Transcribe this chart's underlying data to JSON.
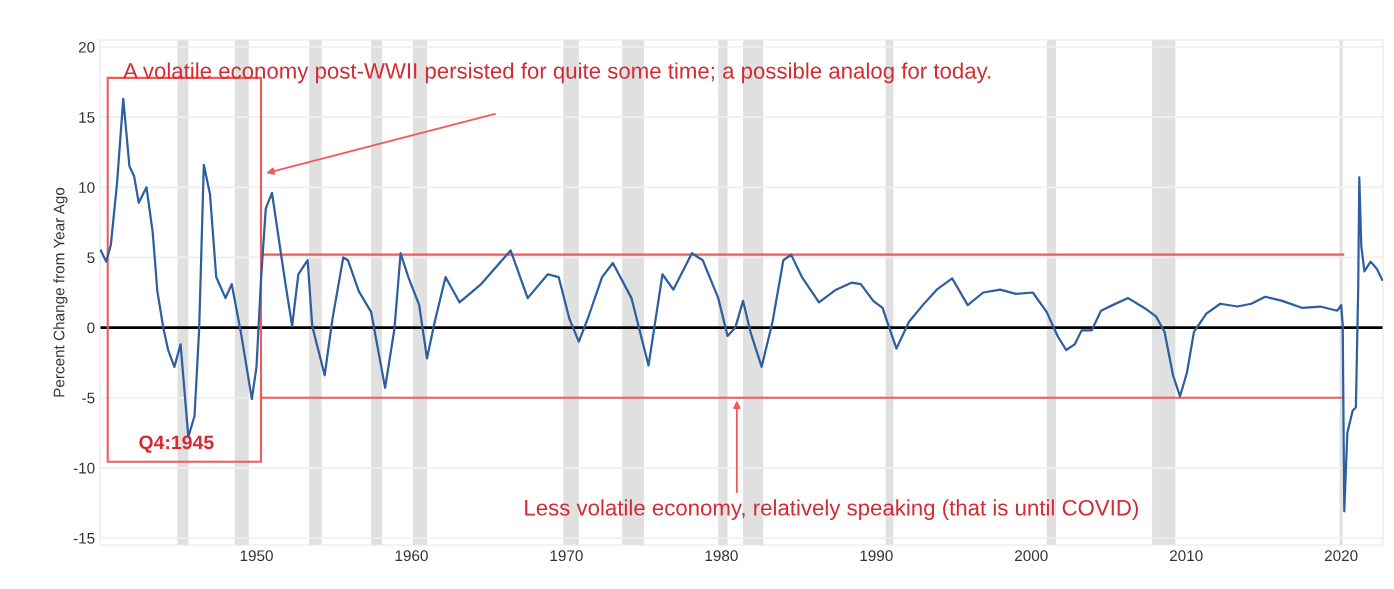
{
  "chart_data": {
    "type": "line",
    "ylabel": "Percent Change from Year Ago",
    "xlim": [
      1939.9,
      2022.7
    ],
    "ylim": [
      -15.5,
      20.5
    ],
    "xticks": [
      1950,
      1960,
      1970,
      1980,
      1990,
      2000,
      2010,
      2020
    ],
    "yticks": [
      -15,
      -10,
      -5,
      0,
      5,
      10,
      15,
      20
    ],
    "grid": "y",
    "series": [
      {
        "color": "#2e5e9e",
        "x": [
          1939.95,
          1940.3,
          1940.6,
          1941.0,
          1941.4,
          1941.8,
          1942.1,
          1942.4,
          1942.9,
          1943.3,
          1943.6,
          1944.0,
          1944.3,
          1944.7,
          1945.1,
          1945.6,
          1946.0,
          1946.3,
          1946.6,
          1947.0,
          1947.4,
          1948.0,
          1948.4,
          1949.0,
          1949.7,
          1950.0,
          1950.3,
          1950.6,
          1951.0,
          1951.6,
          1951.9,
          1952.3,
          1952.7,
          1953.3,
          1953.6,
          1954.4,
          1954.9,
          1955.6,
          1955.9,
          1956.6,
          1957.4,
          1958.3,
          1958.9,
          1959.3,
          1959.8,
          1960.5,
          1961.0,
          1961.5,
          1962.2,
          1963.1,
          1964.5,
          1966.4,
          1967.5,
          1968.8,
          1969.5,
          1970.2,
          1970.8,
          1971.4,
          1972.3,
          1973.0,
          1974.2,
          1975.3,
          1976.2,
          1976.9,
          1978.1,
          1978.8,
          1979.8,
          1980.4,
          1980.9,
          1981.4,
          1981.9,
          1982.6,
          1983.3,
          1984.0,
          1984.5,
          1985.2,
          1986.3,
          1987.4,
          1988.4,
          1989.0,
          1989.8,
          1990.4,
          1991.3,
          1992.1,
          1993.0,
          1993.9,
          1994.9,
          1995.9,
          1996.9,
          1998.0,
          1999.0,
          2000.1,
          2001.0,
          2001.7,
          2002.25,
          2002.8,
          2003.25,
          2003.9,
          2004.5,
          2005.25,
          2006.25,
          2007.3,
          2008.05,
          2008.6,
          2009.15,
          2009.6,
          2010.05,
          2010.5,
          2011.3,
          2012.2,
          2013.3,
          2014.2,
          2015.1,
          2016.2,
          2017.5,
          2018.65,
          2019.75,
          2020.0,
          2020.1,
          2020.2,
          2020.4,
          2020.75,
          2020.95,
          2021.1,
          2021.17,
          2021.3,
          2021.5,
          2021.9,
          2022.3,
          2022.65
        ],
        "values": [
          5.5,
          4.7,
          5.9,
          10.3,
          16.3,
          11.5,
          10.8,
          8.9,
          10.0,
          6.8,
          2.6,
          -0.1,
          -1.6,
          -2.8,
          -1.2,
          -7.8,
          -6.3,
          -0.1,
          11.6,
          9.5,
          3.6,
          2.1,
          3.1,
          -0.4,
          -5.1,
          -2.8,
          3.6,
          8.5,
          9.6,
          5.1,
          2.9,
          0.1,
          3.8,
          4.8,
          0.1,
          -3.4,
          0.6,
          5.0,
          4.8,
          2.6,
          1.1,
          -4.3,
          -0.1,
          5.3,
          3.6,
          1.6,
          -2.2,
          0.4,
          3.6,
          1.8,
          3.1,
          5.5,
          2.1,
          3.8,
          3.6,
          0.6,
          -1.0,
          0.7,
          3.6,
          4.6,
          2.1,
          -2.7,
          3.8,
          2.7,
          5.3,
          4.8,
          2.1,
          -0.6,
          0.0,
          1.9,
          -0.4,
          -2.8,
          0.4,
          4.8,
          5.2,
          3.6,
          1.8,
          2.7,
          3.2,
          3.1,
          1.9,
          1.4,
          -1.5,
          0.4,
          1.6,
          2.7,
          3.5,
          1.6,
          2.5,
          2.7,
          2.4,
          2.5,
          1.1,
          -0.6,
          -1.6,
          -1.2,
          -0.2,
          -0.2,
          1.2,
          1.6,
          2.1,
          1.4,
          0.8,
          -0.3,
          -3.4,
          -4.9,
          -3.2,
          -0.3,
          1.0,
          1.7,
          1.5,
          1.7,
          2.2,
          1.9,
          1.4,
          1.5,
          1.2,
          1.6,
          0.2,
          -13.1,
          -7.5,
          -5.9,
          -5.7,
          2.8,
          10.7,
          5.8,
          4.0,
          4.7,
          4.2,
          3.4
        ]
      }
    ],
    "bands": [
      {
        "axis": "x",
        "from": 1944.9,
        "to": 1945.6,
        "color": "#e0e0e0"
      },
      {
        "axis": "x",
        "from": 1948.6,
        "to": 1949.5,
        "color": "#e0e0e0"
      },
      {
        "axis": "x",
        "from": 1953.4,
        "to": 1954.2,
        "color": "#e0e0e0"
      },
      {
        "axis": "x",
        "from": 1957.4,
        "to": 1958.1,
        "color": "#e0e0e0"
      },
      {
        "axis": "x",
        "from": 1960.1,
        "to": 1961.0,
        "color": "#e0e0e0"
      },
      {
        "axis": "x",
        "from": 1969.8,
        "to": 1970.8,
        "color": "#e0e0e0"
      },
      {
        "axis": "x",
        "from": 1973.6,
        "to": 1975.0,
        "color": "#e0e0e0"
      },
      {
        "axis": "x",
        "from": 1979.8,
        "to": 1980.4,
        "color": "#e0e0e0"
      },
      {
        "axis": "x",
        "from": 1981.4,
        "to": 1982.7,
        "color": "#e0e0e0"
      },
      {
        "axis": "x",
        "from": 1990.6,
        "to": 1991.1,
        "color": "#e0e0e0"
      },
      {
        "axis": "x",
        "from": 2001.0,
        "to": 2001.6,
        "color": "#e0e0e0"
      },
      {
        "axis": "x",
        "from": 2007.8,
        "to": 2009.3,
        "color": "#e0e0e0"
      },
      {
        "axis": "x",
        "from": 2019.9,
        "to": 2020.1,
        "color": "#e0e0e0"
      }
    ],
    "ref_lines": [
      {
        "axis": "y",
        "value": 0,
        "color": "#000000"
      },
      {
        "axis": "y",
        "value": 5.2,
        "color": "#f05a5a"
      },
      {
        "axis": "y",
        "value": -5.0,
        "color": "#f05a5a"
      }
    ],
    "annotations": [
      "A volatile economy post-WWII persisted for quite some time; a possible analog for today.",
      "Q4:1945",
      {
        "text": "Less volatile economy, relatively speaking (that is until COVID)",
        "x": 1981.0,
        "y": -5.0
      }
    ]
  }
}
